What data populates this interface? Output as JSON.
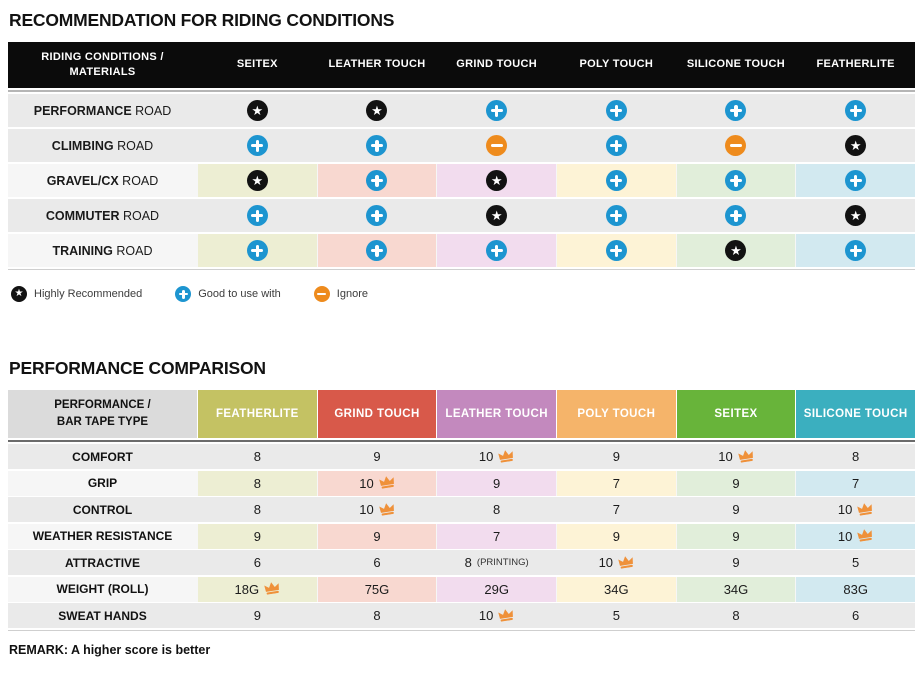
{
  "colors": {
    "star_black": "#121212",
    "plus_blue": "#1d95d0",
    "minus_orange": "#ee8b1d",
    "crown_orange": "#ef913a",
    "header_black": "#0b0b0b",
    "row_gray": "#eaeaea",
    "row_light": "#f6f6f6",
    "corner_gray": "#dbdbdb",
    "column_tints": [
      "#edeed3",
      "#f8d8d0",
      "#f2dcee",
      "#fdf3d6",
      "#e1eeda",
      "#d2e9f0"
    ]
  },
  "chart_data": [
    {
      "type": "table",
      "title": "RECOMMENDATION FOR RIDING CONDITIONS",
      "corner_label": "RIDING CONDITIONS /\nMATERIALS",
      "columns": [
        "SEITEX",
        "LEATHER TOUCH",
        "GRIND TOUCH",
        "POLY TOUCH",
        "SILICONE TOUCH",
        "FEATHERLITE"
      ],
      "rows": [
        {
          "category": "PERFORMANCE",
          "category_suffix": "ROAD",
          "tinted": false,
          "values": [
            "star",
            "star",
            "plus",
            "plus",
            "plus",
            "plus"
          ]
        },
        {
          "category": "CLIMBING",
          "category_suffix": "ROAD",
          "tinted": false,
          "values": [
            "plus",
            "plus",
            "minus",
            "plus",
            "minus",
            "star"
          ]
        },
        {
          "category": "GRAVEL/CX",
          "category_suffix": "ROAD",
          "tinted": true,
          "values": [
            "star",
            "plus",
            "star",
            "plus",
            "plus",
            "plus"
          ]
        },
        {
          "category": "COMMUTER",
          "category_suffix": "ROAD",
          "tinted": false,
          "values": [
            "plus",
            "plus",
            "star",
            "plus",
            "plus",
            "star"
          ]
        },
        {
          "category": "TRAINING",
          "category_suffix": "ROAD",
          "tinted": true,
          "values": [
            "plus",
            "plus",
            "plus",
            "plus",
            "star",
            "plus"
          ]
        }
      ],
      "legend": [
        {
          "icon": "star",
          "label": "Highly Recommended"
        },
        {
          "icon": "plus",
          "label": "Good to use with"
        },
        {
          "icon": "minus",
          "label": "Ignore"
        }
      ]
    },
    {
      "type": "table",
      "title": "PERFORMANCE COMPARISON",
      "corner_label": "PERFORMANCE /\nBAR TAPE TYPE",
      "columns": [
        {
          "label": "FEATHERLITE",
          "color": "#c4c263"
        },
        {
          "label": "GRIND TOUCH",
          "color": "#d8594a"
        },
        {
          "label": "LEATHER TOUCH",
          "color": "#c389be"
        },
        {
          "label": "POLY TOUCH",
          "color": "#f5b46a"
        },
        {
          "label": "SEITEX",
          "color": "#68b43a"
        },
        {
          "label": "SILICONE TOUCH",
          "color": "#3bafbf"
        }
      ],
      "rows": [
        {
          "category": "COMFORT",
          "tinted": false,
          "cells": [
            {
              "value": "8"
            },
            {
              "value": "9"
            },
            {
              "value": "10",
              "best": true
            },
            {
              "value": "9"
            },
            {
              "value": "10",
              "best": true
            },
            {
              "value": "8"
            }
          ]
        },
        {
          "category": "GRIP",
          "tinted": true,
          "cells": [
            {
              "value": "8"
            },
            {
              "value": "10",
              "best": true
            },
            {
              "value": "9"
            },
            {
              "value": "7"
            },
            {
              "value": "9"
            },
            {
              "value": "7"
            }
          ]
        },
        {
          "category": "CONTROL",
          "tinted": false,
          "cells": [
            {
              "value": "8"
            },
            {
              "value": "10",
              "best": true
            },
            {
              "value": "8"
            },
            {
              "value": "7"
            },
            {
              "value": "9"
            },
            {
              "value": "10",
              "best": true
            }
          ]
        },
        {
          "category": "WEATHER RESISTANCE",
          "tinted": true,
          "cells": [
            {
              "value": "9"
            },
            {
              "value": "9"
            },
            {
              "value": "7"
            },
            {
              "value": "9"
            },
            {
              "value": "9"
            },
            {
              "value": "10",
              "best": true
            }
          ]
        },
        {
          "category": "ATTRACTIVE",
          "tinted": false,
          "cells": [
            {
              "value": "6"
            },
            {
              "value": "6"
            },
            {
              "value": "8",
              "suffix": "(PRINTING)"
            },
            {
              "value": "10",
              "best": true
            },
            {
              "value": "9"
            },
            {
              "value": "5"
            }
          ]
        },
        {
          "category": "WEIGHT (ROLL)",
          "tinted": true,
          "cells": [
            {
              "value": "18G",
              "best": true
            },
            {
              "value": "75G"
            },
            {
              "value": "29G"
            },
            {
              "value": "34G"
            },
            {
              "value": "34G"
            },
            {
              "value": "83G"
            }
          ]
        },
        {
          "category": "SWEAT HANDS",
          "tinted": false,
          "cells": [
            {
              "value": "9"
            },
            {
              "value": "8"
            },
            {
              "value": "10",
              "best": true
            },
            {
              "value": "5"
            },
            {
              "value": "8"
            },
            {
              "value": "6"
            }
          ]
        }
      ],
      "remark": "REMARK: A higher score is better"
    }
  ]
}
